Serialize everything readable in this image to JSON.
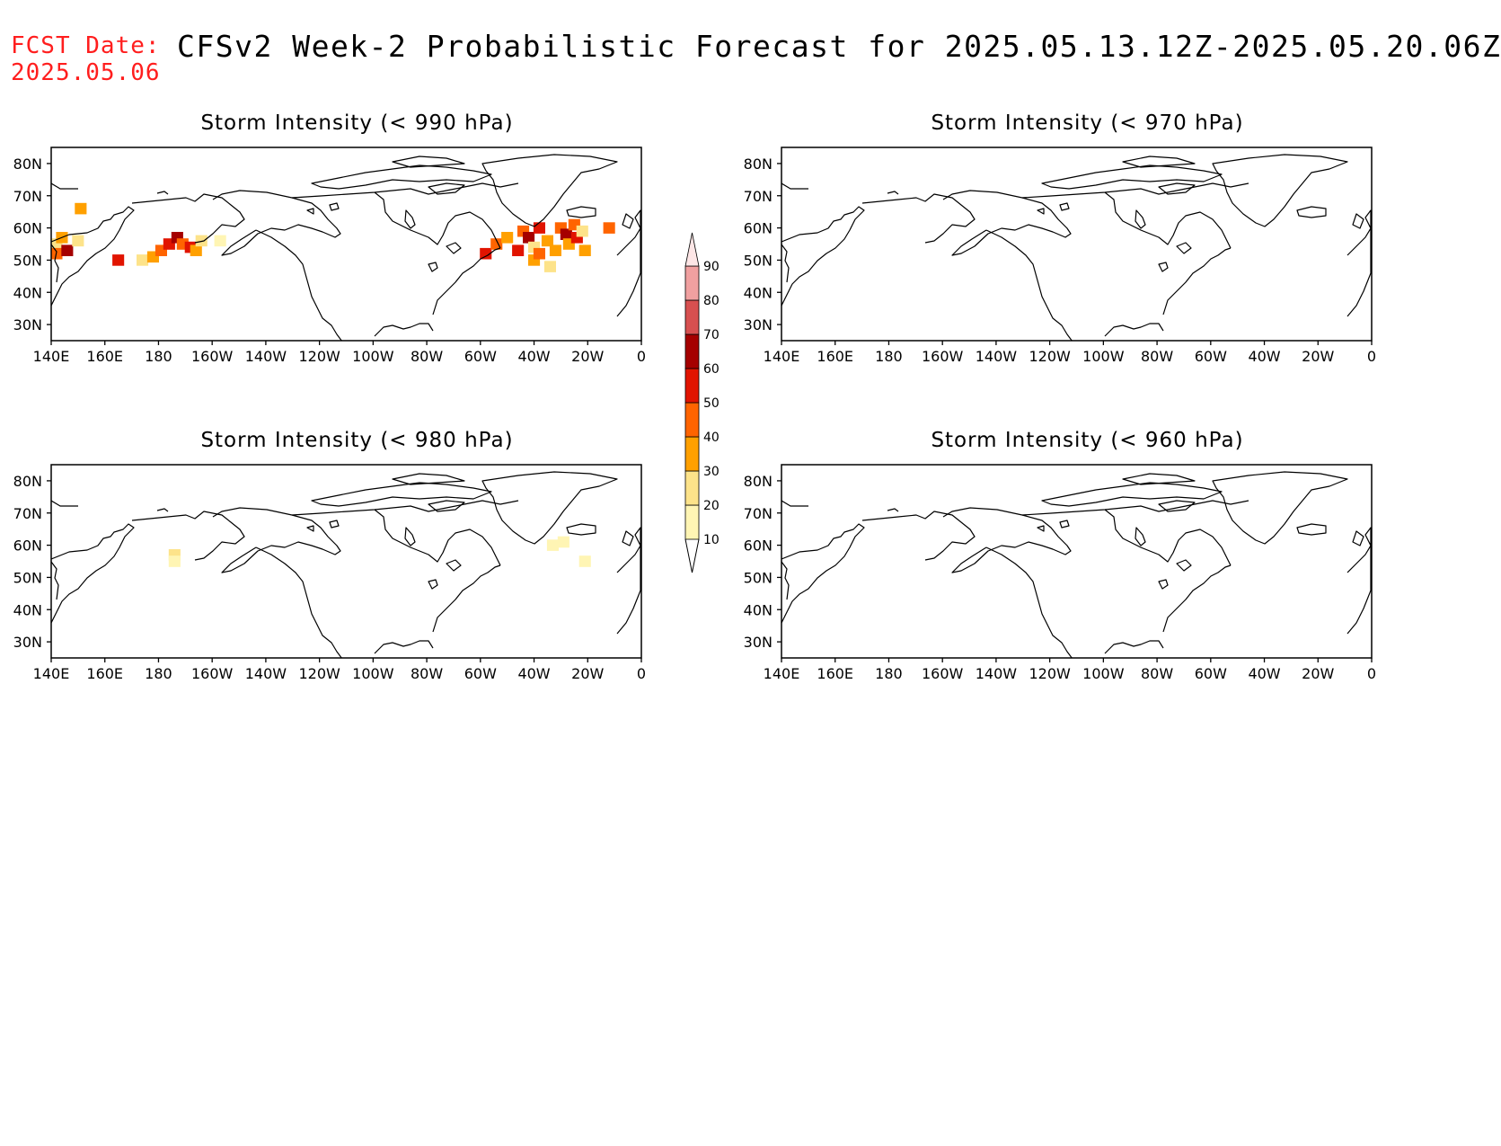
{
  "header": {
    "fcst_label": "FCST Date:",
    "fcst_date": "2025.05.06",
    "title": "CFSv2 Week-2 Probabilistic Forecast for 2025.05.13.12Z-2025.05.20.06Z"
  },
  "map": {
    "lon_range": [
      140,
      360
    ],
    "lat_range": [
      25,
      85
    ],
    "x_ticks": [
      "140E",
      "160E",
      "180",
      "160W",
      "140W",
      "120W",
      "100W",
      "80W",
      "60W",
      "40W",
      "20W",
      "0"
    ],
    "y_ticks": [
      "80N",
      "70N",
      "60N",
      "50N",
      "40N",
      "30N"
    ]
  },
  "colorbar": {
    "levels": [
      "10",
      "20",
      "30",
      "40",
      "50",
      "60",
      "70",
      "80",
      "90"
    ],
    "colors": [
      "#fff5b4",
      "#fde38a",
      "#ffa000",
      "#ff6400",
      "#e11400",
      "#a50000",
      "#d75050",
      "#f0a0a0",
      "#fde6e6"
    ]
  },
  "panels": [
    {
      "title": "Storm Intensity (< 990 hPa)"
    },
    {
      "title": "Storm Intensity (< 970 hPa)"
    },
    {
      "title": "Storm Intensity (< 980 hPa)"
    },
    {
      "title": "Storm Intensity (< 960 hPa)"
    }
  ],
  "chart_data": {
    "type": "heatmap",
    "units": "probability (%)",
    "panels": [
      {
        "threshold": "< 990 hPa",
        "cells": [
          {
            "lon": 142,
            "lat": 55,
            "p": 20
          },
          {
            "lon": 144,
            "lat": 57,
            "p": 30
          },
          {
            "lon": 142,
            "lat": 52,
            "p": 40
          },
          {
            "lon": 146,
            "lat": 53,
            "p": 60
          },
          {
            "lon": 150,
            "lat": 56,
            "p": 20
          },
          {
            "lon": 151,
            "lat": 66,
            "p": 30
          },
          {
            "lon": 165,
            "lat": 50,
            "p": 50
          },
          {
            "lon": 174,
            "lat": 50,
            "p": 20
          },
          {
            "lon": 178,
            "lat": 51,
            "p": 30
          },
          {
            "lon": 181,
            "lat": 53,
            "p": 40
          },
          {
            "lon": 184,
            "lat": 55,
            "p": 50
          },
          {
            "lon": 187,
            "lat": 57,
            "p": 60
          },
          {
            "lon": 189,
            "lat": 55,
            "p": 40
          },
          {
            "lon": 192,
            "lat": 54,
            "p": 50
          },
          {
            "lon": 194,
            "lat": 53,
            "p": 30
          },
          {
            "lon": 196,
            "lat": 56,
            "p": 20
          },
          {
            "lon": 203,
            "lat": 56,
            "p": 10
          },
          {
            "lon": 302,
            "lat": 52,
            "p": 50
          },
          {
            "lon": 306,
            "lat": 55,
            "p": 40
          },
          {
            "lon": 310,
            "lat": 57,
            "p": 30
          },
          {
            "lon": 314,
            "lat": 53,
            "p": 50
          },
          {
            "lon": 316,
            "lat": 59,
            "p": 40
          },
          {
            "lon": 318,
            "lat": 57,
            "p": 60
          },
          {
            "lon": 320,
            "lat": 50,
            "p": 30
          },
          {
            "lon": 320,
            "lat": 54,
            "p": 20
          },
          {
            "lon": 322,
            "lat": 52,
            "p": 40
          },
          {
            "lon": 322,
            "lat": 60,
            "p": 50
          },
          {
            "lon": 325,
            "lat": 56,
            "p": 30
          },
          {
            "lon": 326,
            "lat": 48,
            "p": 20
          },
          {
            "lon": 328,
            "lat": 53,
            "p": 30
          },
          {
            "lon": 330,
            "lat": 60,
            "p": 40
          },
          {
            "lon": 332,
            "lat": 58,
            "p": 60
          },
          {
            "lon": 333,
            "lat": 55,
            "p": 30
          },
          {
            "lon": 335,
            "lat": 61,
            "p": 40
          },
          {
            "lon": 336,
            "lat": 57,
            "p": 50
          },
          {
            "lon": 338,
            "lat": 59,
            "p": 20
          },
          {
            "lon": 339,
            "lat": 53,
            "p": 30
          },
          {
            "lon": 348,
            "lat": 60,
            "p": 40
          }
        ]
      },
      {
        "threshold": "< 970 hPa",
        "cells": []
      },
      {
        "threshold": "< 980 hPa",
        "cells": [
          {
            "lon": 186,
            "lat": 57,
            "p": 20
          },
          {
            "lon": 186,
            "lat": 55,
            "p": 10
          },
          {
            "lon": 327,
            "lat": 60,
            "p": 10
          },
          {
            "lon": 331,
            "lat": 61,
            "p": 10
          },
          {
            "lon": 339,
            "lat": 55,
            "p": 10
          }
        ]
      },
      {
        "threshold": "< 960 hPa",
        "cells": []
      }
    ]
  }
}
